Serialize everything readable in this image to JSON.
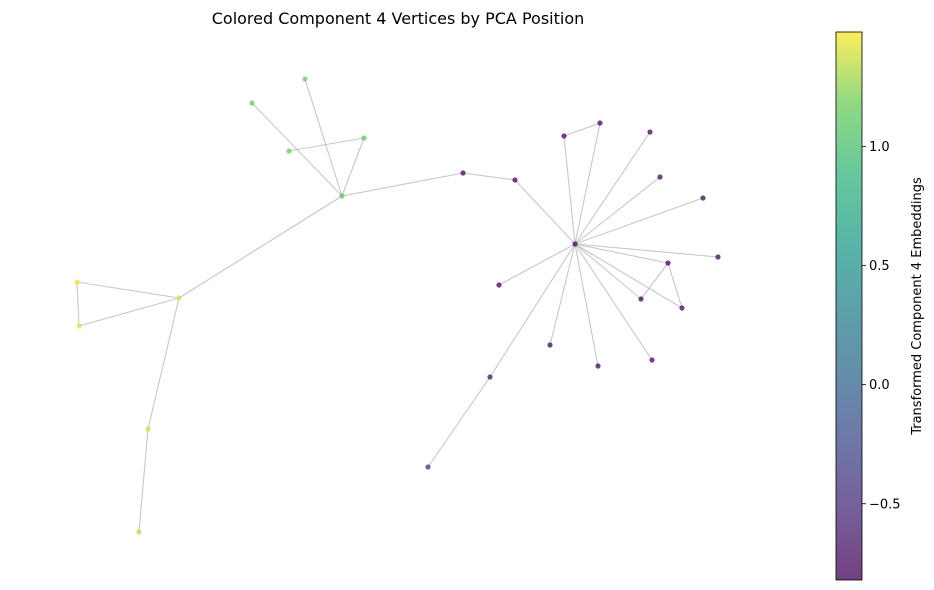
{
  "chart_data": {
    "type": "network-graph",
    "title": "Colored Component 4 Vertices by PCA Position",
    "colorbar": {
      "label": "Transformed Component 4 Embeddings",
      "range": [
        -0.82,
        1.48
      ],
      "ticks": [
        -0.5,
        0.0,
        0.5,
        1.0
      ],
      "tick_labels": [
        "−0.5",
        "0.0",
        "0.5",
        "1.0"
      ],
      "colormap": "viridis",
      "alpha": 0.75
    },
    "nodes": [
      {
        "id": "hub_left",
        "value": 1.12
      },
      {
        "id": "l_top1",
        "value": 1.15
      },
      {
        "id": "l_top2",
        "value": 1.13
      },
      {
        "id": "l_mid1",
        "value": 1.16
      },
      {
        "id": "l_mid2",
        "value": 1.12
      },
      {
        "id": "hub_yellow",
        "value": 1.42
      },
      {
        "id": "y_a",
        "value": 1.45
      },
      {
        "id": "y_b",
        "value": 1.43
      },
      {
        "id": "y_c",
        "value": 1.4
      },
      {
        "id": "y_d",
        "value": 1.35
      },
      {
        "id": "p_chain1",
        "value": -0.78
      },
      {
        "id": "p_chain2",
        "value": -0.78
      },
      {
        "id": "hub_right",
        "value": -0.8
      },
      {
        "id": "r1",
        "value": -0.79
      },
      {
        "id": "r2",
        "value": -0.79
      },
      {
        "id": "r3",
        "value": -0.79
      },
      {
        "id": "r4",
        "value": -0.79
      },
      {
        "id": "r5",
        "value": -0.79
      },
      {
        "id": "r6",
        "value": -0.79
      },
      {
        "id": "r7",
        "value": -0.79
      },
      {
        "id": "r8",
        "value": -0.79
      },
      {
        "id": "r9",
        "value": -0.79
      },
      {
        "id": "r10",
        "value": -0.79
      },
      {
        "id": "r11",
        "value": -0.79
      },
      {
        "id": "r12",
        "value": -0.79
      },
      {
        "id": "r13",
        "value": -0.79
      },
      {
        "id": "r14",
        "value": -0.79
      },
      {
        "id": "r15",
        "value": -0.7
      },
      {
        "id": "r16",
        "value": -0.45
      }
    ],
    "edges": [
      [
        "hub_left",
        "l_top1"
      ],
      [
        "hub_left",
        "l_top2"
      ],
      [
        "hub_left",
        "l_mid2"
      ],
      [
        "l_mid1",
        "l_mid2"
      ],
      [
        "hub_left",
        "hub_yellow"
      ],
      [
        "hub_left",
        "p_chain1"
      ],
      [
        "p_chain1",
        "p_chain2"
      ],
      [
        "p_chain2",
        "hub_right"
      ],
      [
        "hub_yellow",
        "y_a"
      ],
      [
        "hub_yellow",
        "y_b"
      ],
      [
        "y_a",
        "y_b"
      ],
      [
        "hub_yellow",
        "y_c"
      ],
      [
        "y_c",
        "y_d"
      ],
      [
        "hub_right",
        "r1"
      ],
      [
        "r1",
        "r2"
      ],
      [
        "hub_right",
        "r2"
      ],
      [
        "hub_right",
        "r3"
      ],
      [
        "hub_right",
        "r4"
      ],
      [
        "hub_right",
        "r5"
      ],
      [
        "hub_right",
        "r6"
      ],
      [
        "hub_right",
        "r7"
      ],
      [
        "hub_right",
        "r8"
      ],
      [
        "r7",
        "r8"
      ],
      [
        "r7",
        "r9"
      ],
      [
        "hub_right",
        "r9"
      ],
      [
        "hub_right",
        "r10"
      ],
      [
        "hub_right",
        "r11"
      ],
      [
        "hub_right",
        "r12"
      ],
      [
        "hub_right",
        "r13"
      ],
      [
        "hub_right",
        "r15"
      ],
      [
        "r15",
        "r16"
      ]
    ]
  }
}
